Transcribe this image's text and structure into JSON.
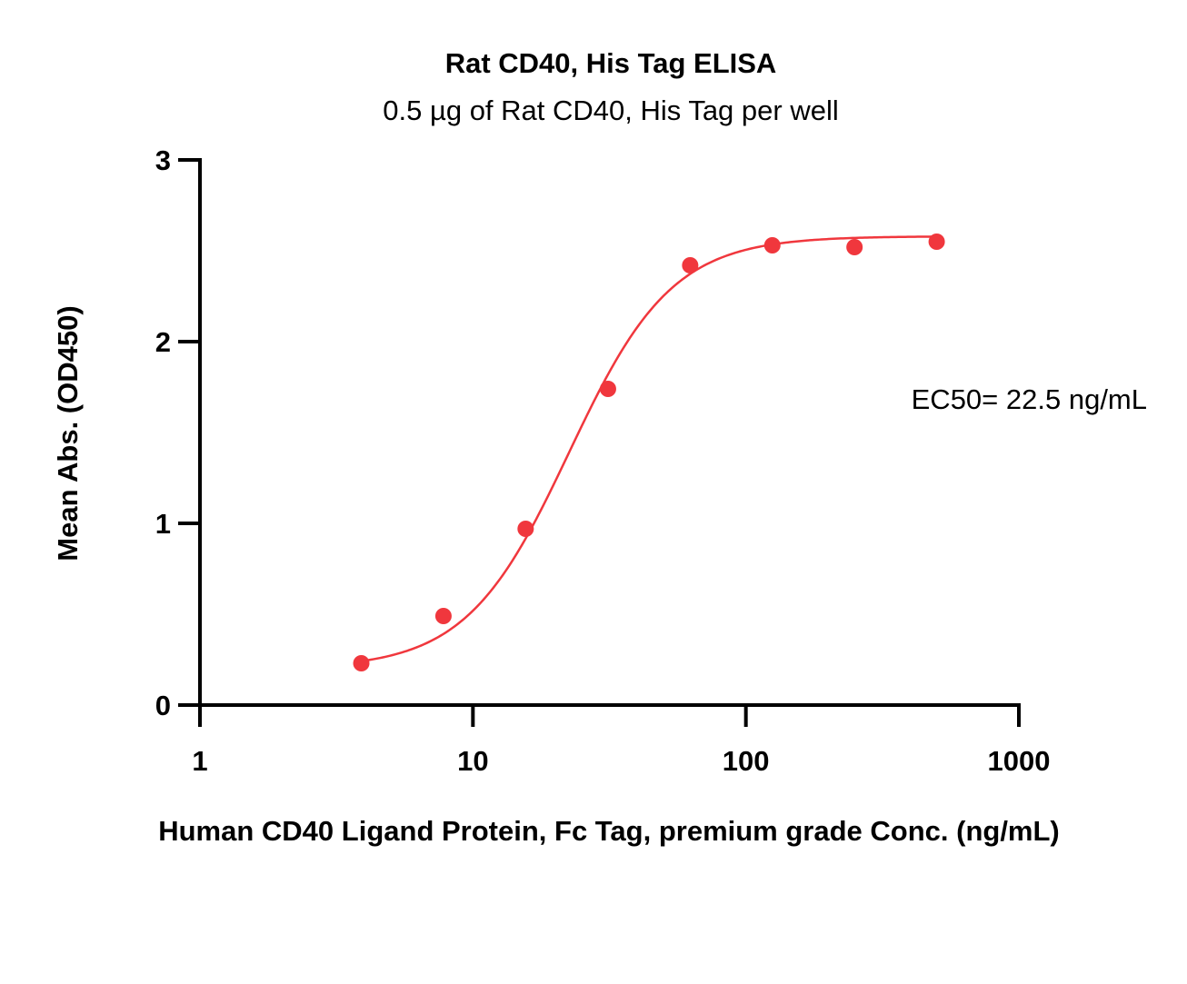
{
  "chart_data": {
    "type": "scatter",
    "title": "Rat CD40, His Tag ELISA",
    "subtitle": "0.5 µg of Rat CD40, His Tag per well",
    "xlabel": "Human CD40 Ligand Protein, Fc Tag, premium grade Conc. (ng/mL)",
    "ylabel": "Mean Abs. (OD450)",
    "x_scale": "log",
    "xlim": [
      1,
      1000
    ],
    "ylim": [
      0,
      3
    ],
    "x_ticks": [
      1,
      10,
      100,
      1000
    ],
    "x_tick_labels": [
      "1",
      "10",
      "100",
      "1000"
    ],
    "y_ticks": [
      0,
      1,
      2,
      3
    ],
    "y_tick_labels": [
      "0",
      "1",
      "2",
      "3"
    ],
    "grid": false,
    "annotation": "EC50= 22.5 ng/mL",
    "series": [
      {
        "color": "#f0373d",
        "x": [
          3.9,
          7.8,
          15.6,
          31.25,
          62.5,
          125,
          250,
          500
        ],
        "y": [
          0.23,
          0.49,
          0.97,
          1.74,
          2.42,
          2.53,
          2.52,
          2.55
        ]
      }
    ],
    "fit_curve": {
      "model": "4PL",
      "bottom": 0.2,
      "top": 2.58,
      "ec50": 22.5,
      "hill": 2.3,
      "x_range": [
        3.9,
        500
      ],
      "color": "#f0373d"
    }
  }
}
